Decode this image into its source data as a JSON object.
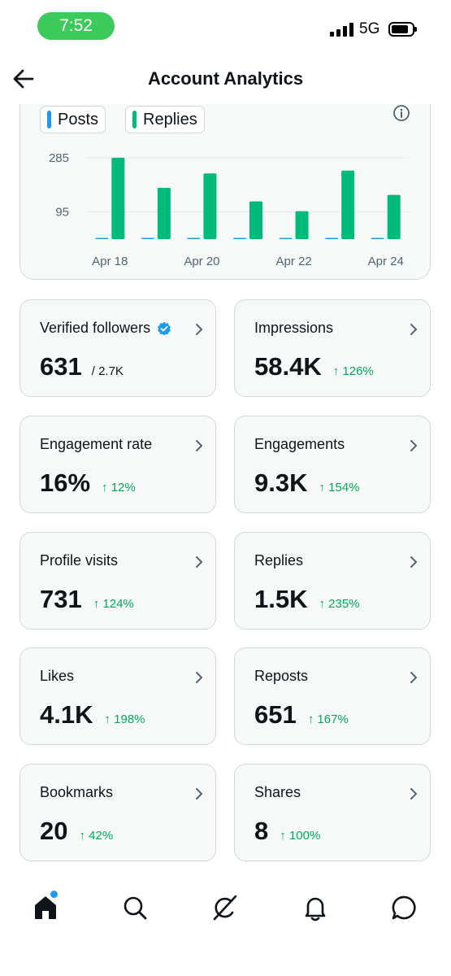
{
  "status": {
    "time": "7:52",
    "network": "5G"
  },
  "header": {
    "title": "Account Analytics"
  },
  "chart_data": {
    "type": "bar",
    "categories": [
      "Apr 18",
      "Apr 19",
      "Apr 20",
      "Apr 21",
      "Apr 22",
      "Apr 23",
      "Apr 24"
    ],
    "x_tick_labels": [
      "Apr 18",
      "Apr 20",
      "Apr 22",
      "Apr 24"
    ],
    "y_ticks": [
      95,
      285
    ],
    "ylim": [
      0,
      285
    ],
    "legend": "top-left",
    "grid": true,
    "series": [
      {
        "name": "Posts",
        "color": "#1d9bf0",
        "values": [
          2,
          0,
          2,
          3,
          1,
          1,
          2
        ]
      },
      {
        "name": "Replies",
        "color": "#00ba7c",
        "values": [
          285,
          180,
          230,
          132,
          98,
          240,
          155
        ]
      }
    ]
  },
  "stats": [
    {
      "label": "Verified followers",
      "value": "631",
      "sub": "/ 2.7K",
      "delta": "",
      "verified": true
    },
    {
      "label": "Impressions",
      "value": "58.4K",
      "sub": "",
      "delta": "↑ 126%"
    },
    {
      "label": "Engagement rate",
      "value": "16%",
      "sub": "",
      "delta": "↑ 12%"
    },
    {
      "label": "Engagements",
      "value": "9.3K",
      "sub": "",
      "delta": "↑ 154%"
    },
    {
      "label": "Profile visits",
      "value": "731",
      "sub": "",
      "delta": "↑ 124%"
    },
    {
      "label": "Replies",
      "value": "1.5K",
      "sub": "",
      "delta": "↑ 235%"
    },
    {
      "label": "Likes",
      "value": "4.1K",
      "sub": "",
      "delta": "↑ 198%"
    },
    {
      "label": "Reposts",
      "value": "651",
      "sub": "",
      "delta": "↑ 167%"
    },
    {
      "label": "Bookmarks",
      "value": "20",
      "sub": "",
      "delta": "↑ 42%"
    },
    {
      "label": "Shares",
      "value": "8",
      "sub": "",
      "delta": "↑ 100%"
    }
  ],
  "nav": {
    "items": [
      "home-icon",
      "search-icon",
      "grok-icon",
      "bell-icon",
      "messages-icon"
    ],
    "active": "home-icon"
  },
  "colors": {
    "accent": "#1d9bf0",
    "positive": "#00a85b",
    "bar": "#00ba7c"
  }
}
